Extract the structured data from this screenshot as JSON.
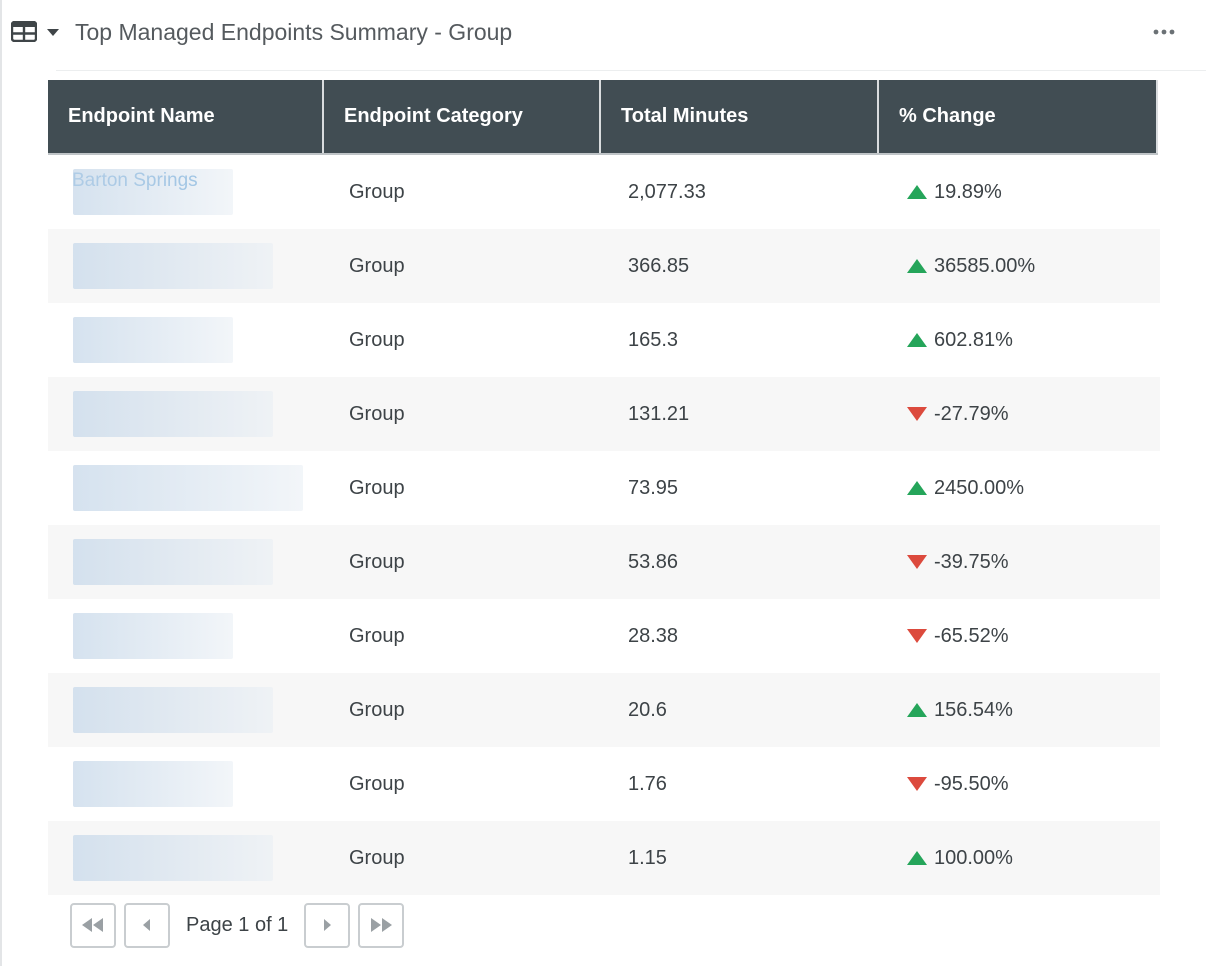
{
  "header": {
    "title": "Top Managed Endpoints Summary - Group",
    "icons": [
      "table-grid-icon",
      "caret-down-icon",
      "more-options-icon"
    ]
  },
  "table": {
    "columns": [
      "Endpoint Name",
      "Endpoint Category",
      "Total Minutes",
      "% Change"
    ],
    "rows": [
      {
        "name": "Barton Springs",
        "category": "Group",
        "minutes": "2,077.33",
        "change": "19.89%",
        "direction": "up"
      },
      {
        "name": "",
        "category": "Group",
        "minutes": "366.85",
        "change": "36585.00%",
        "direction": "up"
      },
      {
        "name": "",
        "category": "Group",
        "minutes": "165.3",
        "change": "602.81%",
        "direction": "up"
      },
      {
        "name": "",
        "category": "Group",
        "minutes": "131.21",
        "change": "-27.79%",
        "direction": "down"
      },
      {
        "name": "",
        "category": "Group",
        "minutes": "73.95",
        "change": "2450.00%",
        "direction": "up"
      },
      {
        "name": "",
        "category": "Group",
        "minutes": "53.86",
        "change": "-39.75%",
        "direction": "down"
      },
      {
        "name": "",
        "category": "Group",
        "minutes": "28.38",
        "change": "-65.52%",
        "direction": "down"
      },
      {
        "name": "",
        "category": "Group",
        "minutes": "20.6",
        "change": "156.54%",
        "direction": "up"
      },
      {
        "name": "",
        "category": "Group",
        "minutes": "1.76",
        "change": "-95.50%",
        "direction": "down"
      },
      {
        "name": "",
        "category": "Group",
        "minutes": "1.15",
        "change": "100.00%",
        "direction": "up"
      }
    ]
  },
  "pager": {
    "label": "Page 1 of 1",
    "buttons": [
      "first-page-icon",
      "prev-page-icon",
      "next-page-icon",
      "last-page-icon"
    ]
  },
  "colors": {
    "header_bg": "#414d53",
    "link": "#3f8fd0",
    "up": "#25a55a",
    "down": "#dc4a3d",
    "row_alt": "#f7f7f7"
  }
}
